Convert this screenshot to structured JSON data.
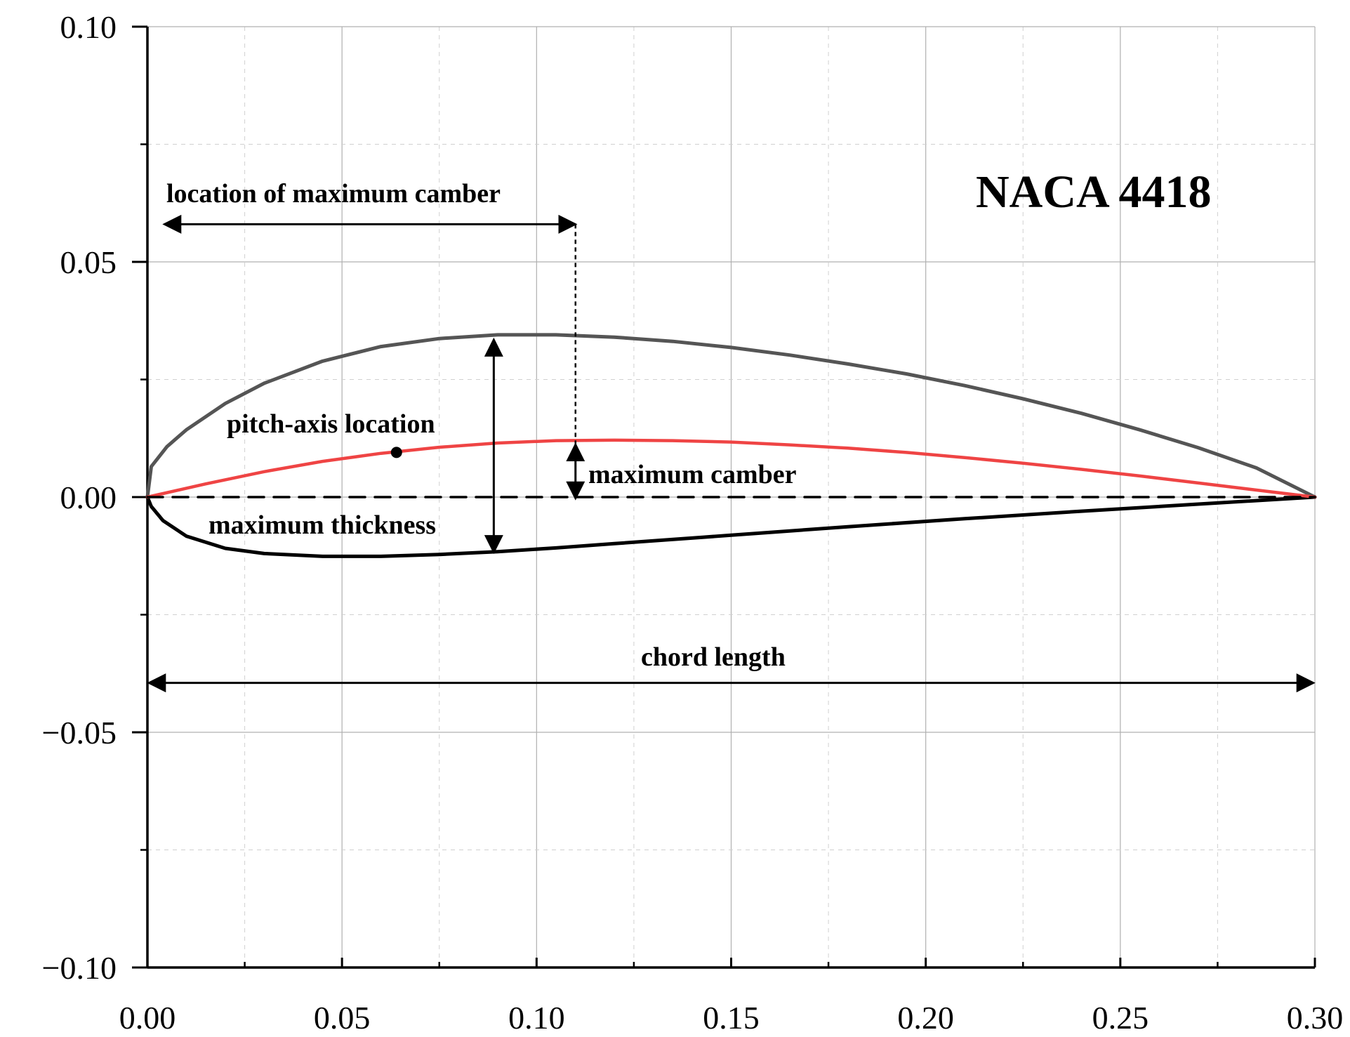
{
  "chart_data": {
    "type": "line",
    "title": "NACA 4418",
    "xlabel": "",
    "ylabel": "",
    "xlim": [
      0.0,
      0.3
    ],
    "ylim": [
      -0.1,
      0.1
    ],
    "x_ticks": [
      0.0,
      0.05,
      0.1,
      0.15,
      0.2,
      0.25,
      0.3
    ],
    "y_ticks": [
      -0.1,
      -0.05,
      0.0,
      0.05,
      0.1
    ],
    "x_tick_labels": [
      "0.00",
      "0.05",
      "0.10",
      "0.15",
      "0.20",
      "0.25",
      "0.30"
    ],
    "y_tick_labels": [
      "−0.10",
      "−0.05",
      "0.00",
      "0.05",
      "0.10"
    ],
    "grid": true,
    "colors": {
      "upper": "#555555",
      "lower": "#000000",
      "camber": "#ef4444",
      "chord": "#000000",
      "grid": "#b0b0b0"
    },
    "series": [
      {
        "key": "upper",
        "x": [
          0.0,
          0.001,
          0.005,
          0.01,
          0.02,
          0.03,
          0.045,
          0.06,
          0.075,
          0.09,
          0.105,
          0.12,
          0.135,
          0.15,
          0.165,
          0.18,
          0.195,
          0.21,
          0.225,
          0.24,
          0.255,
          0.27,
          0.285,
          0.3
        ],
        "y": [
          0.0,
          0.0065,
          0.0107,
          0.0143,
          0.0199,
          0.0242,
          0.0289,
          0.032,
          0.0337,
          0.0345,
          0.0345,
          0.034,
          0.0331,
          0.0318,
          0.0302,
          0.0283,
          0.0262,
          0.0237,
          0.0209,
          0.0178,
          0.0143,
          0.0105,
          0.0062,
          0.0
        ]
      },
      {
        "key": "lower",
        "x": [
          0.0,
          0.001,
          0.004,
          0.01,
          0.02,
          0.03,
          0.045,
          0.06,
          0.075,
          0.09,
          0.105,
          0.12,
          0.15,
          0.18,
          0.21,
          0.24,
          0.27,
          0.3
        ],
        "y": [
          0.0,
          -0.002,
          -0.005,
          -0.0083,
          -0.0109,
          -0.012,
          -0.0126,
          -0.0126,
          -0.0122,
          -0.0116,
          -0.0108,
          -0.0099,
          -0.0081,
          -0.0063,
          -0.0046,
          -0.003,
          -0.0015,
          0.0
        ]
      },
      {
        "key": "camber",
        "x": [
          0.0,
          0.015,
          0.03,
          0.045,
          0.06,
          0.075,
          0.09,
          0.105,
          0.12,
          0.135,
          0.15,
          0.165,
          0.18,
          0.195,
          0.21,
          0.225,
          0.24,
          0.255,
          0.27,
          0.285,
          0.3
        ],
        "y": [
          0.0,
          0.0028,
          0.0054,
          0.0076,
          0.0093,
          0.0106,
          0.0115,
          0.012,
          0.0121,
          0.012,
          0.0117,
          0.0111,
          0.0104,
          0.0095,
          0.0084,
          0.0072,
          0.0059,
          0.0045,
          0.003,
          0.0015,
          0.0
        ]
      },
      {
        "key": "chord",
        "x": [
          0.0,
          0.3
        ],
        "y": [
          0.0,
          0.0
        ]
      }
    ],
    "pitch_axis_point": {
      "x": 0.064,
      "y": 0.0095
    },
    "annotations": {
      "location_of_maximum_camber": "location of maximum camber",
      "pitch_axis_location": "pitch-axis location",
      "maximum_camber": "maximum camber",
      "maximum_thickness": "maximum thickness",
      "chord_length": "chord length"
    },
    "dimension_lines": {
      "max_camber_location": {
        "x_from": 0.0,
        "x_to": 0.11,
        "y": 0.058
      },
      "max_camber_guide": {
        "x": 0.11,
        "y_from": 0.058,
        "y_to": 0.0
      },
      "max_camber": {
        "x": 0.11,
        "y_from": 0.0,
        "y_to": 0.0121
      },
      "max_thickness": {
        "x": 0.089,
        "y_from": -0.0117,
        "y_to": 0.0335
      },
      "chord_length": {
        "x_from": 0.0,
        "x_to": 0.3,
        "y": -0.0395
      }
    }
  }
}
